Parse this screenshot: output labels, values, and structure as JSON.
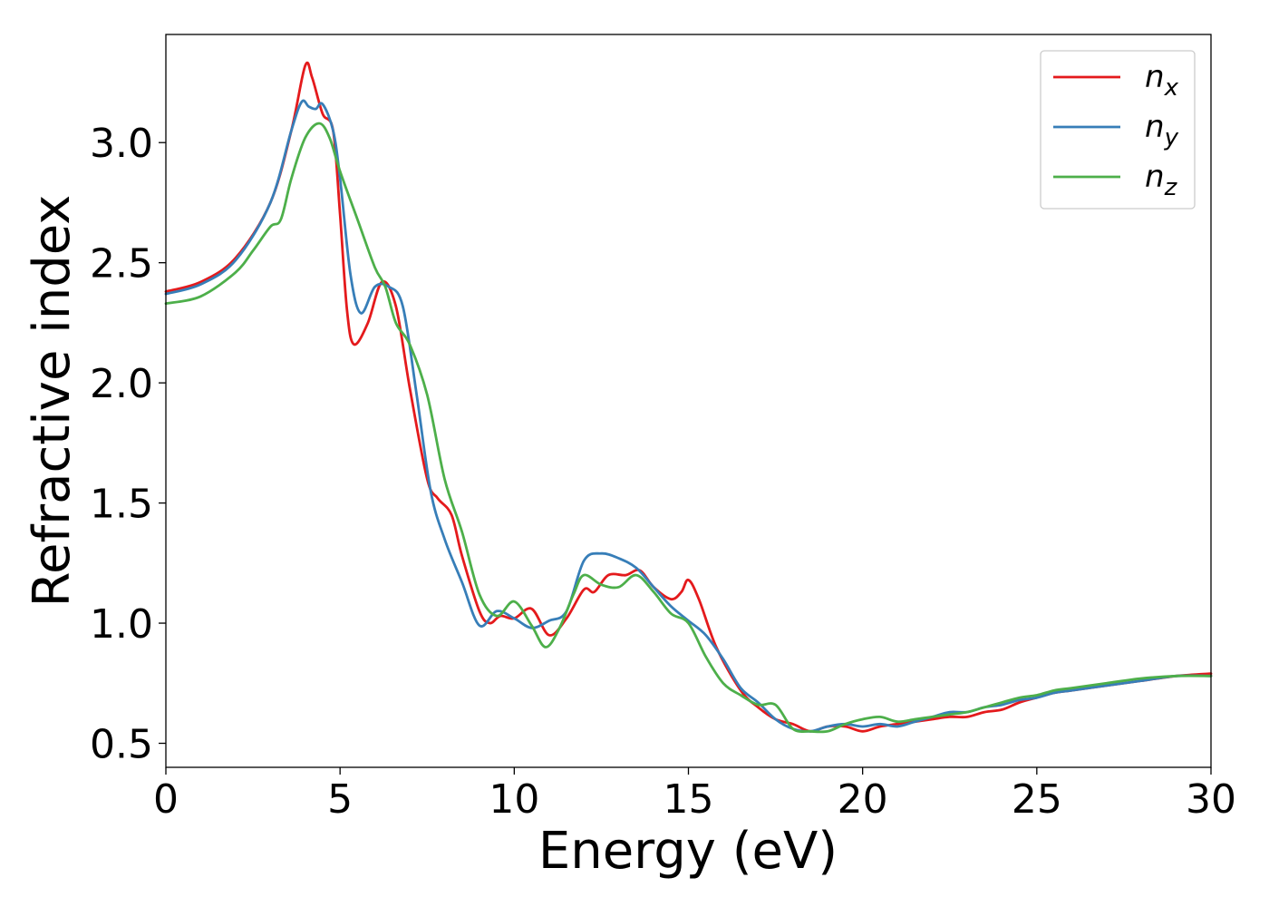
{
  "chart_data": {
    "type": "line",
    "title": "",
    "xlabel": "Energy (eV)",
    "ylabel": "Refractive index",
    "xlim": [
      0,
      30
    ],
    "ylim": [
      0.4,
      3.45
    ],
    "xticks": [
      0,
      5,
      10,
      15,
      20,
      25,
      30
    ],
    "xtick_labels": [
      "0",
      "5",
      "10",
      "15",
      "20",
      "25",
      "30"
    ],
    "yticks": [
      0.5,
      1.0,
      1.5,
      2.0,
      2.5,
      3.0
    ],
    "ytick_labels": [
      "0.5",
      "1.0",
      "1.5",
      "2.0",
      "2.5",
      "3.0"
    ],
    "grid": false,
    "legend_position": "top-right",
    "legend": [
      {
        "base": "n",
        "sub": "x",
        "color": "#e41a1c"
      },
      {
        "base": "n",
        "sub": "y",
        "color": "#377eb8"
      },
      {
        "base": "n",
        "sub": "z",
        "color": "#4daf4a"
      }
    ],
    "series": [
      {
        "color": "#e41a1c",
        "points": [
          [
            0,
            2.38
          ],
          [
            1,
            2.42
          ],
          [
            2,
            2.52
          ],
          [
            3,
            2.75
          ],
          [
            3.6,
            3.05
          ],
          [
            4.0,
            3.32
          ],
          [
            4.2,
            3.27
          ],
          [
            4.5,
            3.12
          ],
          [
            4.8,
            3.05
          ],
          [
            5.0,
            2.7
          ],
          [
            5.2,
            2.3
          ],
          [
            5.4,
            2.16
          ],
          [
            5.8,
            2.25
          ],
          [
            6.2,
            2.42
          ],
          [
            6.6,
            2.32
          ],
          [
            7.0,
            1.98
          ],
          [
            7.5,
            1.6
          ],
          [
            7.8,
            1.52
          ],
          [
            8.2,
            1.45
          ],
          [
            8.5,
            1.28
          ],
          [
            9.0,
            1.05
          ],
          [
            9.3,
            1.0
          ],
          [
            9.6,
            1.03
          ],
          [
            10.0,
            1.02
          ],
          [
            10.5,
            1.06
          ],
          [
            11.0,
            0.95
          ],
          [
            11.5,
            1.02
          ],
          [
            12.0,
            1.14
          ],
          [
            12.3,
            1.13
          ],
          [
            12.7,
            1.2
          ],
          [
            13.2,
            1.2
          ],
          [
            13.6,
            1.22
          ],
          [
            14.0,
            1.15
          ],
          [
            14.5,
            1.1
          ],
          [
            14.8,
            1.13
          ],
          [
            15.0,
            1.18
          ],
          [
            15.3,
            1.1
          ],
          [
            15.8,
            0.9
          ],
          [
            16.5,
            0.72
          ],
          [
            17.0,
            0.65
          ],
          [
            17.5,
            0.6
          ],
          [
            18.0,
            0.58
          ],
          [
            18.5,
            0.55
          ],
          [
            19.0,
            0.57
          ],
          [
            19.5,
            0.57
          ],
          [
            20.0,
            0.55
          ],
          [
            20.5,
            0.57
          ],
          [
            21.0,
            0.58
          ],
          [
            21.5,
            0.59
          ],
          [
            22.0,
            0.6
          ],
          [
            22.5,
            0.61
          ],
          [
            23.0,
            0.61
          ],
          [
            23.5,
            0.63
          ],
          [
            24.0,
            0.64
          ],
          [
            24.5,
            0.67
          ],
          [
            25.0,
            0.69
          ],
          [
            25.5,
            0.71
          ],
          [
            26.0,
            0.72
          ],
          [
            27.0,
            0.74
          ],
          [
            28.0,
            0.76
          ],
          [
            29.0,
            0.78
          ],
          [
            30.0,
            0.79
          ]
        ]
      },
      {
        "color": "#377eb8",
        "points": [
          [
            0,
            2.37
          ],
          [
            1,
            2.41
          ],
          [
            2,
            2.51
          ],
          [
            3,
            2.75
          ],
          [
            3.6,
            3.05
          ],
          [
            3.9,
            3.17
          ],
          [
            4.1,
            3.15
          ],
          [
            4.3,
            3.14
          ],
          [
            4.5,
            3.16
          ],
          [
            4.8,
            3.05
          ],
          [
            5.0,
            2.85
          ],
          [
            5.3,
            2.45
          ],
          [
            5.6,
            2.29
          ],
          [
            6.0,
            2.4
          ],
          [
            6.4,
            2.4
          ],
          [
            6.8,
            2.32
          ],
          [
            7.2,
            1.95
          ],
          [
            7.6,
            1.55
          ],
          [
            8.0,
            1.35
          ],
          [
            8.5,
            1.17
          ],
          [
            9.0,
            0.99
          ],
          [
            9.5,
            1.05
          ],
          [
            10.0,
            1.02
          ],
          [
            10.5,
            0.98
          ],
          [
            11.0,
            1.01
          ],
          [
            11.5,
            1.05
          ],
          [
            12.0,
            1.26
          ],
          [
            12.5,
            1.29
          ],
          [
            13.0,
            1.27
          ],
          [
            13.5,
            1.23
          ],
          [
            14.0,
            1.15
          ],
          [
            14.5,
            1.07
          ],
          [
            15.0,
            1.01
          ],
          [
            15.5,
            0.95
          ],
          [
            16.0,
            0.85
          ],
          [
            16.5,
            0.73
          ],
          [
            17.0,
            0.67
          ],
          [
            17.5,
            0.6
          ],
          [
            18.0,
            0.56
          ],
          [
            18.5,
            0.55
          ],
          [
            19.0,
            0.57
          ],
          [
            19.5,
            0.58
          ],
          [
            20.0,
            0.57
          ],
          [
            20.5,
            0.58
          ],
          [
            21.0,
            0.57
          ],
          [
            21.5,
            0.59
          ],
          [
            22.0,
            0.61
          ],
          [
            22.5,
            0.63
          ],
          [
            23.0,
            0.63
          ],
          [
            23.5,
            0.65
          ],
          [
            24.0,
            0.66
          ],
          [
            24.5,
            0.68
          ],
          [
            25.0,
            0.69
          ],
          [
            25.5,
            0.71
          ],
          [
            26.0,
            0.72
          ],
          [
            27.0,
            0.74
          ],
          [
            28.0,
            0.76
          ],
          [
            29.0,
            0.78
          ],
          [
            30.0,
            0.78
          ]
        ]
      },
      {
        "color": "#4daf4a",
        "points": [
          [
            0,
            2.33
          ],
          [
            1,
            2.36
          ],
          [
            2,
            2.46
          ],
          [
            2.5,
            2.55
          ],
          [
            3.0,
            2.65
          ],
          [
            3.3,
            2.68
          ],
          [
            3.6,
            2.85
          ],
          [
            4.0,
            3.02
          ],
          [
            4.4,
            3.08
          ],
          [
            4.7,
            3.02
          ],
          [
            5.0,
            2.88
          ],
          [
            5.5,
            2.68
          ],
          [
            6.0,
            2.48
          ],
          [
            6.3,
            2.4
          ],
          [
            6.6,
            2.25
          ],
          [
            7.0,
            2.16
          ],
          [
            7.5,
            1.95
          ],
          [
            8.0,
            1.6
          ],
          [
            8.5,
            1.38
          ],
          [
            9.0,
            1.12
          ],
          [
            9.5,
            1.03
          ],
          [
            10.0,
            1.09
          ],
          [
            10.5,
            0.99
          ],
          [
            10.9,
            0.9
          ],
          [
            11.3,
            0.98
          ],
          [
            11.7,
            1.12
          ],
          [
            12.0,
            1.2
          ],
          [
            12.5,
            1.16
          ],
          [
            13.0,
            1.15
          ],
          [
            13.5,
            1.2
          ],
          [
            14.0,
            1.13
          ],
          [
            14.5,
            1.04
          ],
          [
            15.0,
            1.0
          ],
          [
            15.5,
            0.86
          ],
          [
            16.0,
            0.75
          ],
          [
            16.5,
            0.7
          ],
          [
            17.0,
            0.66
          ],
          [
            17.5,
            0.66
          ],
          [
            18.0,
            0.56
          ],
          [
            18.5,
            0.55
          ],
          [
            19.0,
            0.55
          ],
          [
            19.5,
            0.58
          ],
          [
            20.0,
            0.6
          ],
          [
            20.5,
            0.61
          ],
          [
            21.0,
            0.59
          ],
          [
            21.5,
            0.6
          ],
          [
            22.0,
            0.61
          ],
          [
            22.5,
            0.62
          ],
          [
            23.0,
            0.63
          ],
          [
            23.5,
            0.65
          ],
          [
            24.0,
            0.67
          ],
          [
            24.5,
            0.69
          ],
          [
            25.0,
            0.7
          ],
          [
            25.5,
            0.72
          ],
          [
            26.0,
            0.73
          ],
          [
            27.0,
            0.75
          ],
          [
            28.0,
            0.77
          ],
          [
            29.0,
            0.78
          ],
          [
            30.0,
            0.78
          ]
        ]
      }
    ]
  }
}
